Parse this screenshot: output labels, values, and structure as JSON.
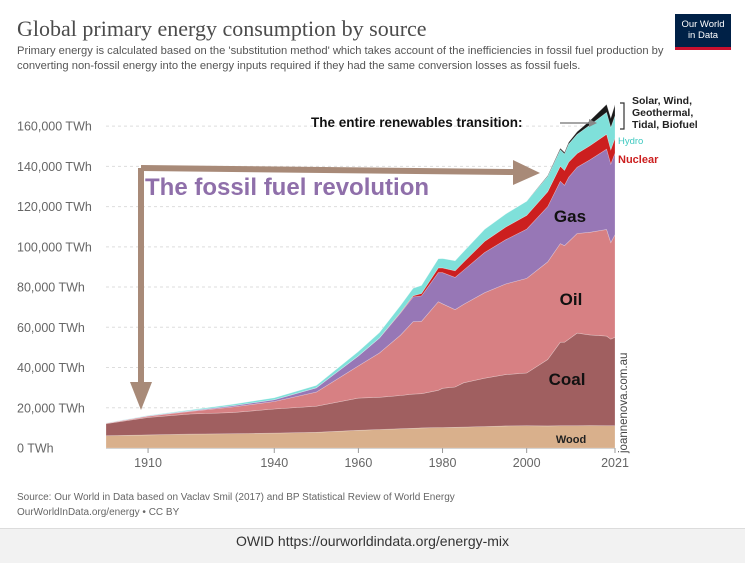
{
  "header": {
    "title": "Global primary energy consumption by source",
    "subtitle": "Primary energy is calculated based on the 'substitution method' which takes account of the inefficiencies in fossil fuel production by converting non-fossil energy into the energy inputs required if they had the same conversion losses as fossil fuels."
  },
  "logo": {
    "line1": "Our World",
    "line2": "in Data"
  },
  "footer": {
    "source": "Source: Our World in Data based on Vaclav Smil (2017) and BP Statistical Review of World Energy",
    "link": "OurWorldInData.org/energy • CC BY"
  },
  "caption": "OWID https://ourworldindata.org/energy-mix",
  "colors": {
    "wood": "#d9b08c",
    "coal": "#a05f60",
    "oil": "#d78083",
    "gas": "#9777b6",
    "nuclear": "#cc1f1f",
    "hydro": "#7fe0da",
    "renewables": "#1a1a1a",
    "annotation": "#a88a78",
    "annotation_text": "#8f6faa"
  },
  "chart_data": {
    "type": "area",
    "stacked": true,
    "title": "Global primary energy consumption by source",
    "xlabel": "",
    "ylabel": "",
    "xlim": [
      1900,
      2021
    ],
    "ylim": [
      0,
      170000
    ],
    "y_ticks": [
      "0 TWh",
      "20,000 TWh",
      "40,000 TWh",
      "60,000 TWh",
      "80,000 TWh",
      "100,000 TWh",
      "120,000 TWh",
      "140,000 TWh",
      "160,000 TWh"
    ],
    "y_tick_values": [
      0,
      20000,
      40000,
      60000,
      80000,
      100000,
      120000,
      140000,
      160000
    ],
    "x_ticks": [
      1910,
      1940,
      1960,
      1980,
      2000,
      2021
    ],
    "x": [
      1900,
      1910,
      1920,
      1930,
      1940,
      1950,
      1960,
      1965,
      1970,
      1973,
      1975,
      1979,
      1980,
      1983,
      1985,
      1990,
      1995,
      2000,
      2005,
      2008,
      2009,
      2010,
      2012,
      2015,
      2019,
      2020,
      2021
    ],
    "series": [
      {
        "name": "Wood",
        "values": [
          6100,
          6500,
          6900,
          7100,
          7400,
          7800,
          8800,
          9200,
          9600,
          9800,
          10000,
          10200,
          10200,
          10300,
          10400,
          10700,
          11000,
          11100,
          11000,
          11100,
          11100,
          11100,
          11100,
          11200,
          11100,
          11100,
          11100
        ]
      },
      {
        "name": "Coal",
        "values": [
          6000,
          8700,
          10000,
          10500,
          12000,
          13000,
          16000,
          16000,
          16500,
          17000,
          17000,
          18500,
          19500,
          20000,
          22000,
          24000,
          25500,
          26200,
          33000,
          41500,
          41500,
          43000,
          46000,
          45000,
          44500,
          43000,
          44000
        ]
      },
      {
        "name": "Oil",
        "values": [
          200,
          600,
          1300,
          2800,
          3700,
          7000,
          16000,
          22000,
          30000,
          36000,
          36000,
          44000,
          42000,
          38500,
          39000,
          42500,
          45000,
          47000,
          48500,
          49000,
          48000,
          48500,
          49500,
          51000,
          53000,
          48000,
          51000
        ]
      },
      {
        "name": "Gas",
        "values": [
          70,
          200,
          300,
          600,
          900,
          2100,
          5000,
          7500,
          11000,
          12300,
          12600,
          14500,
          15500,
          16000,
          17000,
          20000,
          22000,
          24500,
          27500,
          31000,
          30000,
          32000,
          33000,
          36000,
          40000,
          39000,
          40500
        ]
      },
      {
        "name": "Nuclear",
        "values": [
          0,
          0,
          0,
          0,
          0,
          0,
          0,
          0,
          300,
          550,
          1200,
          2300,
          2300,
          3300,
          4000,
          5500,
          6300,
          6800,
          7400,
          7500,
          7400,
          7500,
          6800,
          7000,
          7400,
          7200,
          7400
        ]
      },
      {
        "name": "Hydro",
        "values": [
          60,
          220,
          420,
          700,
          1000,
          1200,
          2200,
          2700,
          3500,
          3800,
          4000,
          4600,
          4700,
          5000,
          5300,
          6000,
          6500,
          7100,
          7600,
          8200,
          8200,
          9000,
          9500,
          10300,
          10800,
          11000,
          11200
        ]
      },
      {
        "name": "Solar, Wind, Geothermal, Tidal, Biofuel",
        "values": [
          0,
          0,
          0,
          0,
          0,
          0,
          0,
          0,
          0,
          0,
          0,
          0,
          0,
          0,
          0,
          0,
          0,
          0,
          400,
          700,
          800,
          900,
          1300,
          2200,
          4000,
          4700,
          5500
        ]
      }
    ],
    "labels": {
      "gas": "Gas",
      "oil": "Oil",
      "coal": "Coal",
      "wood": "Wood",
      "nuclear": "Nuclear",
      "hydro": "Hydro",
      "renewables": "Solar, Wind,\nGeothermal,\nTidal, Biofuel"
    },
    "annotations": {
      "renewables_transition": "The entire renewables transition:",
      "fossil_revolution": "The fossil fuel revolution",
      "watermark": "joannenova.com.au"
    }
  }
}
